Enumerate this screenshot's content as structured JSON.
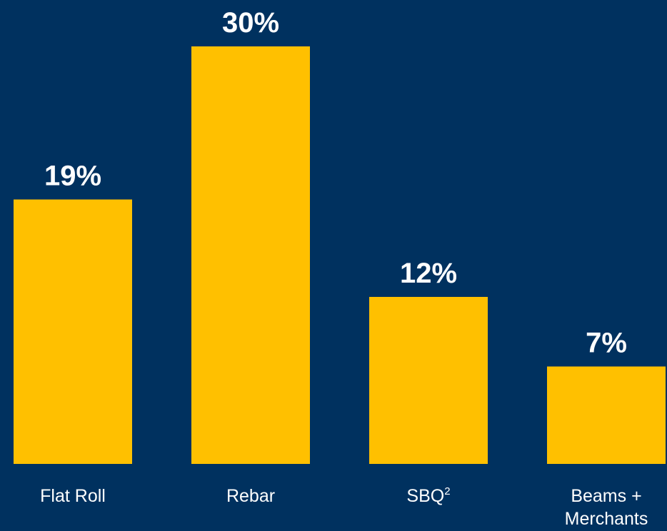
{
  "colors": {
    "background": "#00315f",
    "bar": "#ffc000",
    "text": "#ffffff"
  },
  "chart_data": {
    "type": "bar",
    "categories": [
      [
        "Flat Roll"
      ],
      [
        "Rebar"
      ],
      [
        "SBQ",
        "2"
      ],
      [
        "Beams +",
        "Merchants"
      ]
    ],
    "values": [
      19,
      30,
      12,
      7
    ],
    "value_labels": [
      "19%",
      "30%",
      "12%",
      "7%"
    ],
    "ylim": [
      0,
      30
    ],
    "grid": false,
    "legend": "none"
  }
}
